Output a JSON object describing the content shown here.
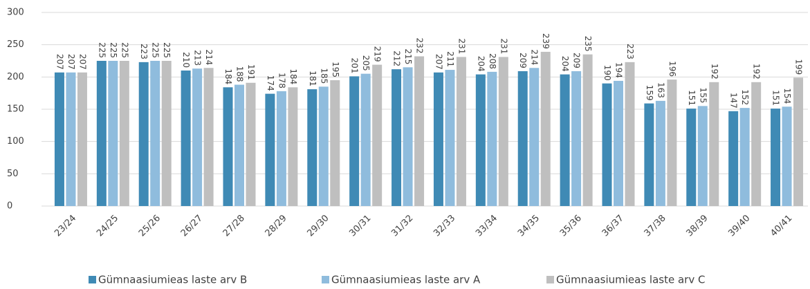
{
  "chart_data": {
    "type": "bar",
    "categories": [
      "23/24",
      "24/25",
      "25/26",
      "26/27",
      "27/28",
      "28/29",
      "29/30",
      "30/31",
      "31/32",
      "32/33",
      "33/34",
      "34/35",
      "35/36",
      "36/37",
      "37/38",
      "38/39",
      "39/40",
      "40/41"
    ],
    "series": [
      {
        "name": "Gümnaasiumieas laste arv B",
        "color": "#3f8ab5",
        "values": [
          207,
          225,
          223,
          210,
          184,
          174,
          181,
          201,
          212,
          207,
          204,
          209,
          204,
          190,
          159,
          151,
          147,
          151
        ]
      },
      {
        "name": "Gümnaasiumieas laste arv A",
        "color": "#8fbcdd",
        "values": [
          207,
          225,
          225,
          213,
          188,
          178,
          185,
          205,
          215,
          211,
          208,
          214,
          209,
          194,
          163,
          155,
          152,
          154
        ]
      },
      {
        "name": "Gümnaasiumieas laste arv C",
        "color": "#bfbfbf",
        "values": [
          207,
          225,
          225,
          214,
          191,
          184,
          195,
          219,
          232,
          231,
          231,
          239,
          235,
          223,
          196,
          192,
          192,
          199
        ]
      }
    ],
    "ylim": [
      0,
      300
    ],
    "yticks": [
      0,
      50,
      100,
      150,
      200,
      250,
      300
    ],
    "grid": true,
    "legend": "bottom"
  }
}
